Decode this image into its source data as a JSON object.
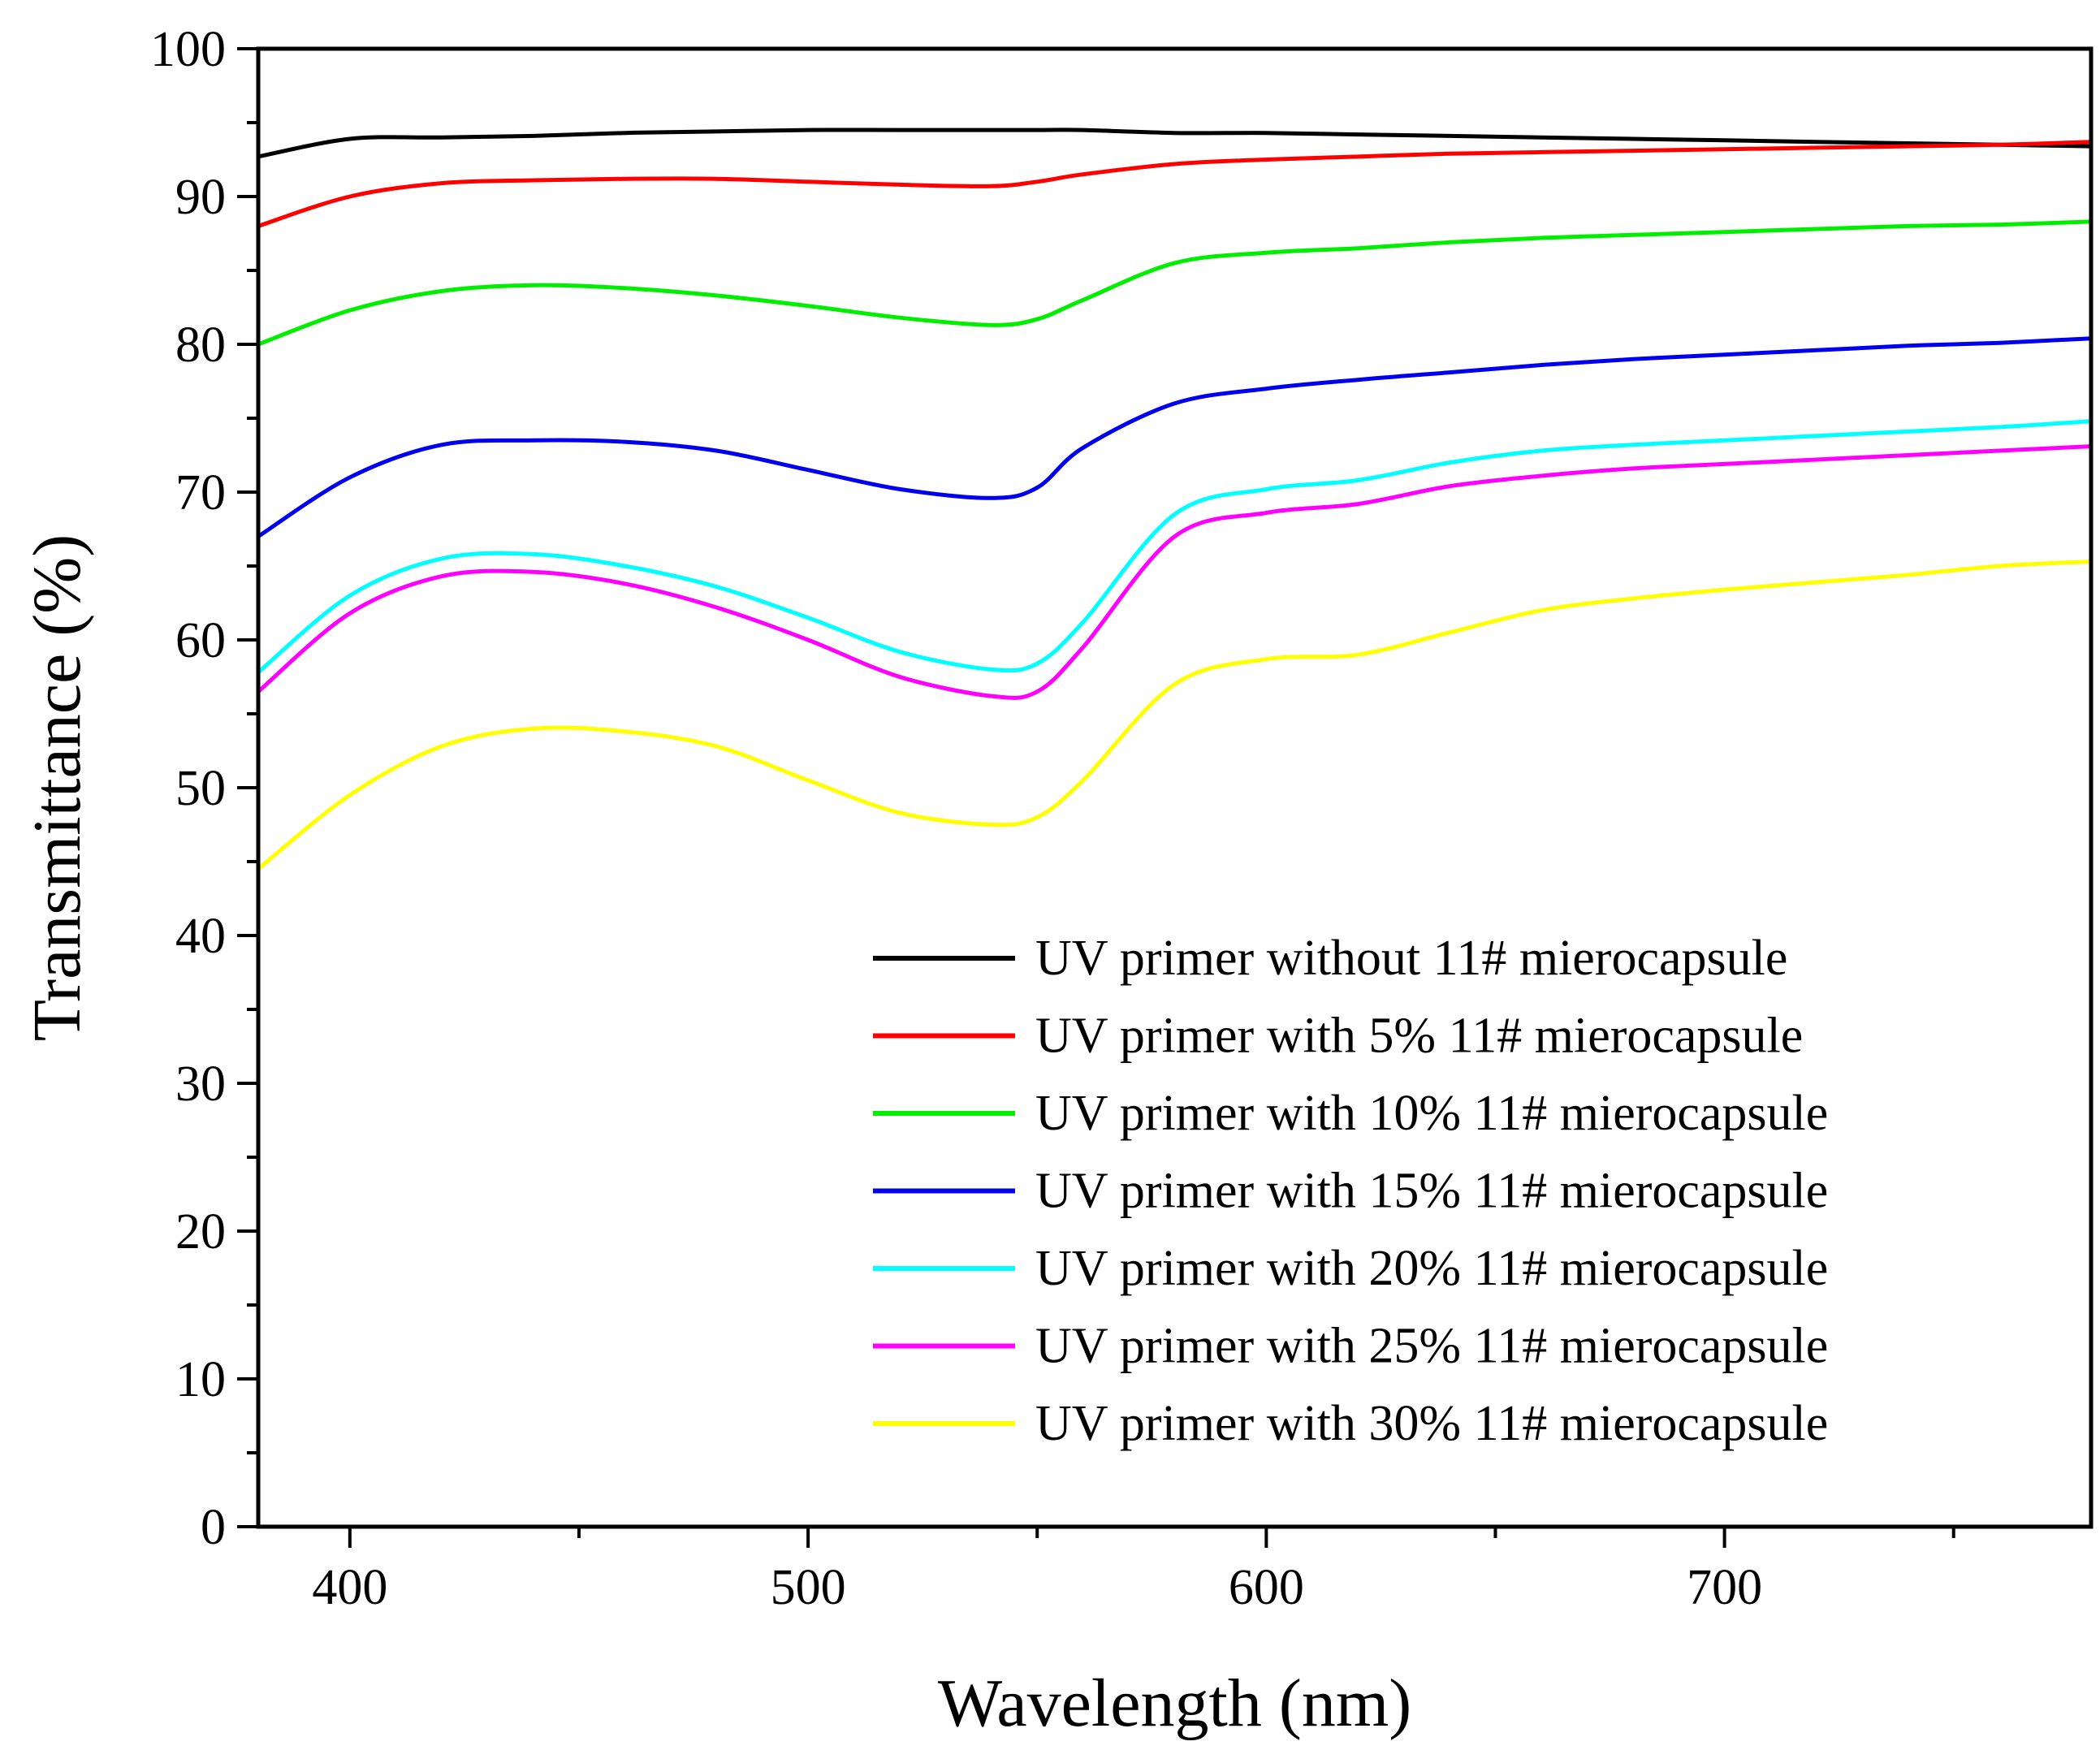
{
  "chart_data": {
    "type": "line",
    "title": "",
    "xlabel": "Wavelength (nm)",
    "ylabel": "Transmittance (%)",
    "xlim": [
      380,
      780
    ],
    "ylim": [
      0,
      100
    ],
    "xticks": [
      "400",
      "500",
      "600",
      "700"
    ],
    "xtick_values": [
      400,
      500,
      600,
      700
    ],
    "yticks": [
      "0",
      "10",
      "20",
      "30",
      "40",
      "50",
      "60",
      "70",
      "80",
      "90",
      "100"
    ],
    "ytick_values": [
      0,
      10,
      20,
      30,
      40,
      50,
      60,
      70,
      80,
      90,
      100
    ],
    "grid": false,
    "legend_position": "bottom-right",
    "x": [
      380,
      400,
      420,
      440,
      460,
      480,
      500,
      520,
      540,
      550,
      560,
      580,
      600,
      620,
      640,
      660,
      680,
      700,
      720,
      740,
      760,
      780
    ],
    "series": [
      {
        "name": "UV primer without 11# mierocapsule",
        "color": "#000000",
        "values": [
          92.7,
          93.9,
          94.0,
          94.1,
          94.3,
          94.4,
          94.5,
          94.5,
          94.5,
          94.5,
          94.5,
          94.3,
          94.3,
          94.2,
          94.1,
          94.0,
          93.9,
          93.8,
          93.7,
          93.6,
          93.5,
          93.4
        ]
      },
      {
        "name": "UV primer with 5% 11# mierocapsule",
        "color": "#ff0000",
        "values": [
          88.0,
          90.0,
          90.9,
          91.1,
          91.2,
          91.2,
          91.0,
          90.8,
          90.7,
          91.0,
          91.5,
          92.2,
          92.5,
          92.7,
          92.9,
          93.0,
          93.1,
          93.2,
          93.3,
          93.4,
          93.5,
          93.7
        ]
      },
      {
        "name": "UV primer with 10% 11# mierocapsule",
        "color": "#00ee00",
        "values": [
          80.0,
          82.3,
          83.6,
          84.0,
          83.8,
          83.3,
          82.6,
          81.8,
          81.3,
          81.7,
          83.0,
          85.5,
          86.2,
          86.5,
          86.9,
          87.2,
          87.4,
          87.6,
          87.8,
          88.0,
          88.1,
          88.3
        ]
      },
      {
        "name": "UV primer with 15% 11# mierocapsule",
        "color": "#0000ee",
        "values": [
          67.0,
          71.0,
          73.2,
          73.5,
          73.4,
          72.8,
          71.5,
          70.2,
          69.6,
          70.3,
          73.0,
          76.0,
          77.0,
          77.6,
          78.1,
          78.6,
          79.0,
          79.3,
          79.6,
          79.9,
          80.1,
          80.4
        ]
      },
      {
        "name": "UV primer with 20% 11# mierocapsule",
        "color": "#00ffff",
        "values": [
          57.8,
          63.0,
          65.5,
          65.8,
          65.0,
          63.6,
          61.5,
          59.2,
          58.0,
          58.4,
          61.2,
          68.5,
          70.2,
          70.8,
          72.0,
          72.8,
          73.2,
          73.5,
          73.8,
          74.1,
          74.4,
          74.8
        ]
      },
      {
        "name": "UV primer with 25% 11# mierocapsule",
        "color": "#ff00ff",
        "values": [
          56.5,
          61.8,
          64.3,
          64.6,
          63.8,
          62.2,
          60.0,
          57.5,
          56.2,
          56.5,
          59.5,
          67.0,
          68.6,
          69.2,
          70.4,
          71.1,
          71.6,
          71.9,
          72.2,
          72.5,
          72.8,
          73.1
        ]
      },
      {
        "name": "UV primer with 30% 11# mierocapsule",
        "color": "#ffff00",
        "values": [
          44.5,
          49.5,
          52.8,
          54.0,
          53.8,
          52.8,
          50.5,
          48.3,
          47.5,
          48.0,
          50.5,
          57.0,
          58.7,
          59.0,
          60.5,
          62.0,
          62.8,
          63.4,
          63.9,
          64.4,
          65.0,
          65.3
        ]
      }
    ]
  }
}
